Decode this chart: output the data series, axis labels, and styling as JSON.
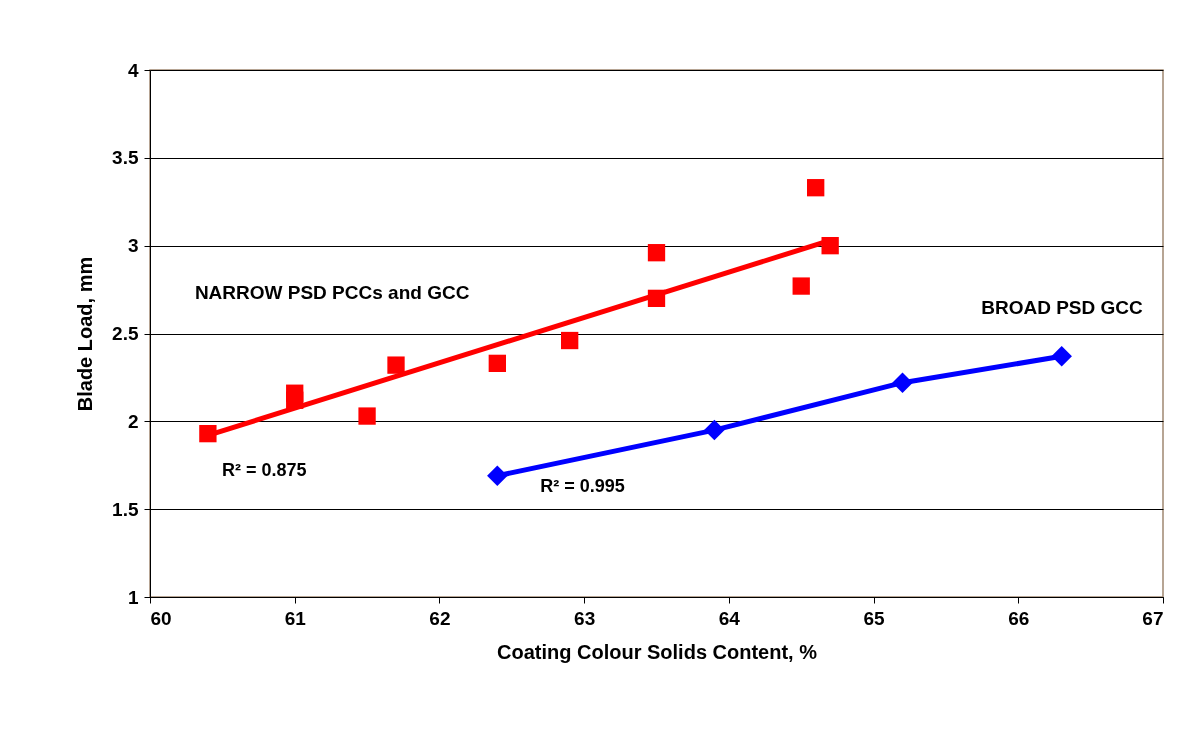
{
  "chart_data": {
    "type": "scatter",
    "xlabel": "Coating Colour Solids Content, %",
    "ylabel": "Blade Load, mm",
    "xlim": [
      60,
      67
    ],
    "ylim": [
      1,
      4
    ],
    "xticks": [
      60,
      61,
      62,
      63,
      64,
      65,
      66,
      67
    ],
    "yticks": [
      1,
      1.5,
      2,
      2.5,
      3,
      3.5,
      4
    ],
    "grid": "y",
    "annotations": [
      "R² = 0.875",
      "R² = 0.995"
    ],
    "series": [
      {
        "name": "NARROW PSD PCCs and GCC",
        "marker": "square",
        "color": "#ff0000",
        "x": [
          60.4,
          61.0,
          61.0,
          61.5,
          61.7,
          62.4,
          62.9,
          63.5,
          63.5,
          64.5,
          64.6,
          64.7
        ],
        "values": [
          1.93,
          2.16,
          2.12,
          2.03,
          2.32,
          2.33,
          2.46,
          2.96,
          2.7,
          2.77,
          3.33,
          3.0
        ]
      },
      {
        "type": "line",
        "marker": "none",
        "color": "#ff0000",
        "x": [
          60.4,
          64.7
        ],
        "values": [
          1.92,
          3.03
        ]
      },
      {
        "name": "BROAD PSD GCC",
        "type": "line",
        "marker": "diamond",
        "color": "#0000ff",
        "x": [
          62.4,
          63.9,
          65.2,
          66.3
        ],
        "values": [
          1.69,
          1.95,
          2.22,
          2.37
        ]
      }
    ]
  }
}
